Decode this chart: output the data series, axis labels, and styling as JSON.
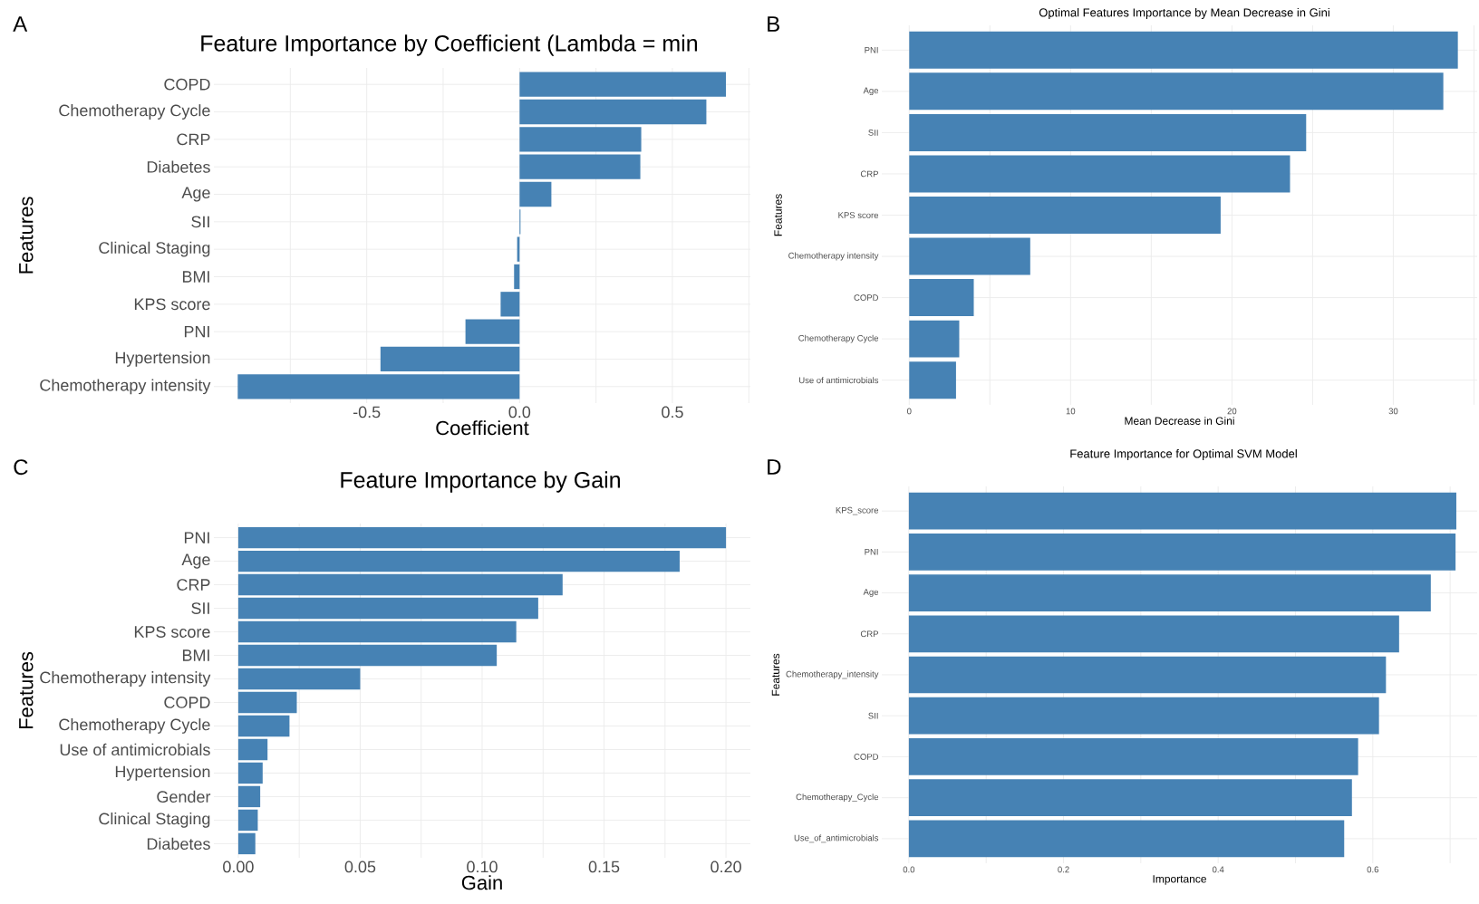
{
  "chart_data": [
    {
      "type": "bar",
      "orientation": "horizontal",
      "title": "Feature Importance by Coefficient (Lambda = min",
      "xlabel": "Coefficient",
      "ylabel": "Features",
      "annotations": [
        "A"
      ],
      "categories": [
        "COPD",
        "Chemotherapy Cycle",
        "CRP",
        "Diabetes",
        "Age",
        "SII",
        "Clinical Staging",
        "BMI",
        "KPS score",
        "PNI",
        "Hypertension",
        "Chemotherapy intensity"
      ],
      "values": [
        0.675,
        0.611,
        0.398,
        0.395,
        0.104,
        0.003,
        -0.008,
        -0.018,
        -0.062,
        -0.177,
        -0.455,
        -0.922
      ],
      "color": "#4682b4",
      "xlim": [
        -1.0,
        0.755
      ],
      "xticks": [
        {
          "value": -0.75,
          "label": null
        },
        -0.5,
        {
          "value": -0.25,
          "label": null
        },
        {
          "value": 0,
          "label": "0.0"
        },
        {
          "value": 0.25,
          "label": null
        },
        0.5,
        {
          "value": 0.75,
          "label": null
        }
      ],
      "grid": true
    },
    {
      "type": "bar",
      "orientation": "horizontal",
      "title": "Optimal Features Importance by Mean Decrease in Gini",
      "xlabel": "Mean Decrease in Gini",
      "ylabel": "Features",
      "annotations": [
        "B"
      ],
      "categories": [
        "PNI",
        "Age",
        "SII",
        "CRP",
        "KPS score",
        "Chemotherapy intensity",
        "COPD",
        "Chemotherapy Cycle",
        "Use of antimicrobials"
      ],
      "values": [
        34.0,
        33.1,
        24.6,
        23.6,
        19.3,
        7.5,
        4.0,
        3.1,
        2.9
      ],
      "color": "#4682b4",
      "xlim": [
        -1.7,
        35.2
      ],
      "xticks": [
        0,
        {
          "value": 5,
          "label": null
        },
        10,
        {
          "value": 15,
          "label": null
        },
        20,
        {
          "value": 25,
          "label": null
        },
        30,
        {
          "value": 35,
          "label": null
        }
      ],
      "grid": true
    },
    {
      "type": "bar",
      "orientation": "horizontal",
      "title": "Feature Importance by Gain",
      "xlabel": "Gain",
      "ylabel": "Features",
      "annotations": [
        "C"
      ],
      "categories": [
        "PNI",
        "Age",
        "CRP",
        "SII",
        "KPS score",
        "BMI",
        "Chemotherapy intensity",
        "COPD",
        "Chemotherapy Cycle",
        "Use of antimicrobials",
        "Hypertension",
        "Gender",
        "Clinical Staging",
        "Diabetes"
      ],
      "values": [
        0.2,
        0.181,
        0.133,
        0.123,
        0.114,
        0.106,
        0.05,
        0.024,
        0.021,
        0.012,
        0.01,
        0.009,
        0.008,
        0.007
      ],
      "color": "#4682b4",
      "xlim": [
        -0.01,
        0.21
      ],
      "xticks": [
        {
          "value": 0,
          "label": "0.00"
        },
        {
          "value": 0.025,
          "label": null
        },
        0.05,
        {
          "value": 0.075,
          "label": null
        },
        {
          "value": 0.1,
          "label": "0.10"
        },
        {
          "value": 0.125,
          "label": null
        },
        0.15,
        {
          "value": 0.175,
          "label": null
        },
        {
          "value": 0.2,
          "label": "0.20"
        }
      ],
      "grid": true
    },
    {
      "type": "bar",
      "orientation": "horizontal",
      "title": "Feature Importance for Optimal SVM Model",
      "xlabel": "Importance",
      "ylabel": "Features",
      "annotations": [
        "D"
      ],
      "categories": [
        "KPS_score",
        "PNI",
        "Age",
        "CRP",
        "Chemotherapy_intensity",
        "SII",
        "COPD",
        "Chemotherapy_Cycle",
        "Use_of_antimicrobials"
      ],
      "values": [
        0.708,
        0.707,
        0.675,
        0.634,
        0.617,
        0.608,
        0.581,
        0.573,
        0.563
      ],
      "color": "#4682b4",
      "xlim": [
        -0.035,
        0.735
      ],
      "xticks": [
        {
          "value": 0,
          "label": "0.0"
        },
        {
          "value": 0.1,
          "label": null
        },
        0.2,
        {
          "value": 0.3,
          "label": null
        },
        0.4,
        {
          "value": 0.5,
          "label": null
        },
        0.6,
        {
          "value": 0.7,
          "label": null
        }
      ],
      "grid": true
    }
  ]
}
